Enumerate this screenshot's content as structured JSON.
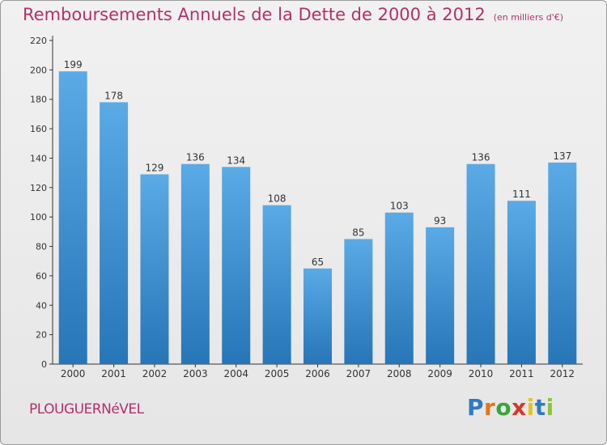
{
  "title": "Remboursements Annuels de la Dette de 2000 à 2012",
  "title_unit": "(en milliers d'€)",
  "commune": "PLOUGUERNéVEL",
  "logo": {
    "letters": [
      "P",
      "r",
      "o",
      "x",
      "i",
      "t",
      "i"
    ],
    "colors": [
      "#2e7bc4",
      "#e8731a",
      "#3aa53a",
      "#d33a2c",
      "#e8c21a",
      "#2e7bc4",
      "#8bc43a"
    ]
  },
  "chart_data": {
    "type": "bar",
    "title": "Remboursements Annuels de la Dette de 2000 à 2012",
    "xlabel": "",
    "ylabel": "",
    "categories": [
      "2000",
      "2001",
      "2002",
      "2003",
      "2004",
      "2005",
      "2006",
      "2007",
      "2008",
      "2009",
      "2010",
      "2011",
      "2012"
    ],
    "values": [
      199,
      178,
      129,
      136,
      134,
      108,
      65,
      85,
      103,
      93,
      136,
      111,
      137
    ],
    "ylim": [
      0,
      220
    ],
    "yticks": [
      0,
      20,
      40,
      60,
      80,
      100,
      120,
      140,
      160,
      180,
      200,
      220
    ],
    "grid": false,
    "bar_color_top": "#5aaae6",
    "bar_color_bottom": "#2676b8"
  }
}
